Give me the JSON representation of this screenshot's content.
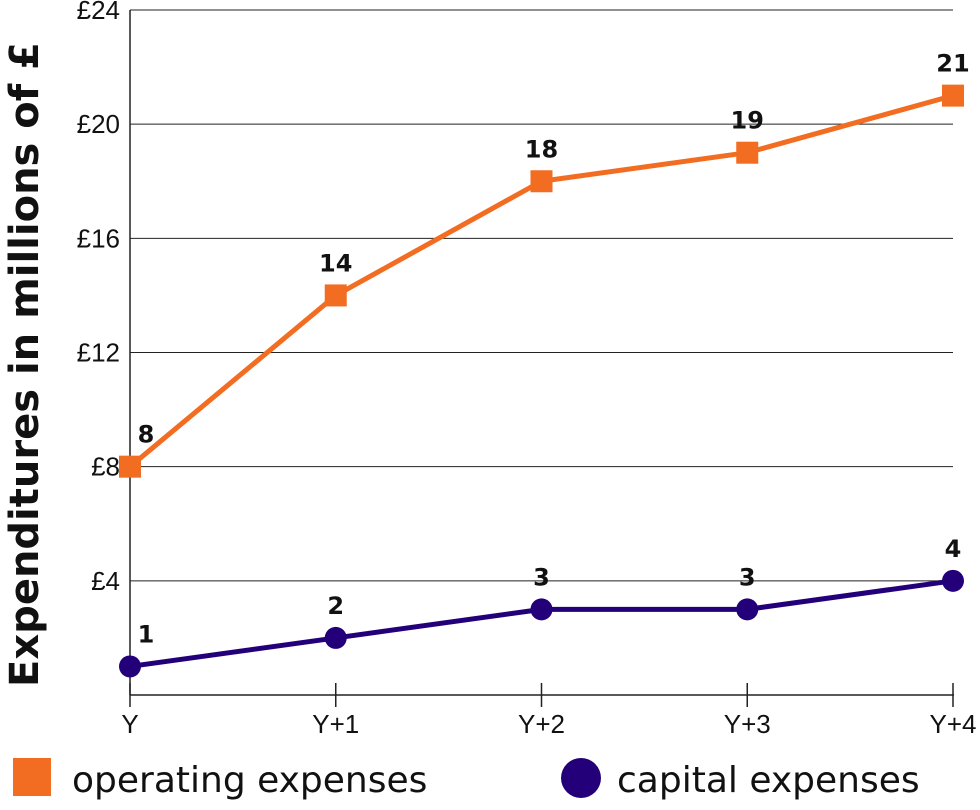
{
  "chart_data": {
    "type": "line",
    "categories": [
      "Y",
      "Y+1",
      "Y+2",
      "Y+3",
      "Y+4"
    ],
    "ylabel": "Expenditures in millions of £",
    "xlabel": "",
    "title": "",
    "ylim": [
      0,
      24
    ],
    "y_ticks": [
      {
        "value": 4,
        "label": "£4"
      },
      {
        "value": 8,
        "label": "£8"
      },
      {
        "value": 12,
        "label": "£12"
      },
      {
        "value": 16,
        "label": "£16"
      },
      {
        "value": 20,
        "label": "£20"
      },
      {
        "value": 24,
        "label": "£24"
      }
    ],
    "grid": true,
    "legend_position": "bottom",
    "series": [
      {
        "name": "operating expenses",
        "values": [
          8,
          14,
          18,
          19,
          21
        ],
        "labels": [
          "8",
          "14",
          "18",
          "19",
          "21"
        ],
        "color": "#f26d21",
        "marker": "square"
      },
      {
        "name": "capital expenses",
        "values": [
          1,
          2,
          3,
          3,
          4
        ],
        "labels": [
          "1",
          "2",
          "3",
          "3",
          "4"
        ],
        "color": "#23007a",
        "marker": "circle"
      }
    ]
  }
}
